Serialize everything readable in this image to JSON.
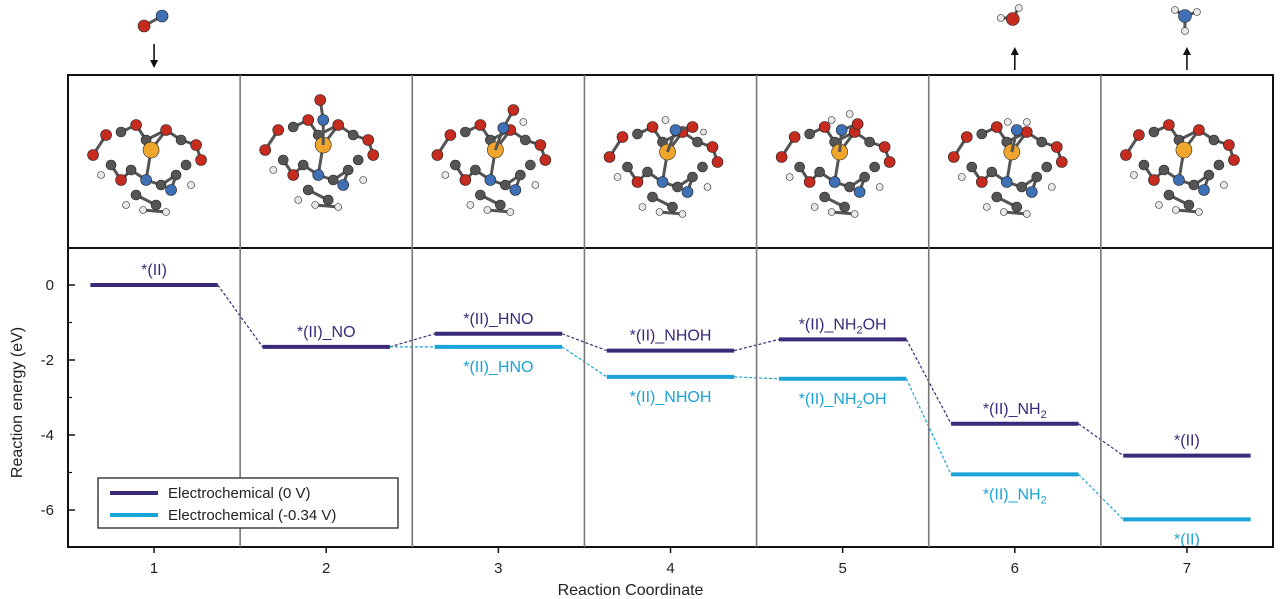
{
  "chart_data": {
    "type": "line",
    "xlabel": "Reaction Coordinate",
    "ylabel": "Reaction energy (eV)",
    "x": [
      1,
      2,
      3,
      4,
      5,
      6,
      7
    ],
    "x_tick_labels": [
      "1",
      "2",
      "3",
      "4",
      "5",
      "6",
      "7"
    ],
    "y_ticks": [
      0,
      -2,
      -4,
      -6
    ],
    "y_tick_labels": [
      "0",
      "-2",
      "-4",
      "-6"
    ],
    "ylim": [
      -7.0,
      0.9
    ],
    "legend_position": "bottom-left",
    "colors": {
      "series_0V": "#3b2a7a",
      "series_m034V": "#1aa3d6"
    },
    "series": [
      {
        "name": "Electrochemical (0 V)",
        "values": [
          0.0,
          -1.65,
          -1.3,
          -1.75,
          -1.45,
          -3.7,
          -4.55
        ],
        "labels": [
          "*(II)",
          "*(II)_NO",
          "*(II)_HNO",
          "*(II)_NHOH",
          "*(II)_NH2OH",
          "*(II)_NH2",
          "*(II)"
        ]
      },
      {
        "name": "Electrochemical (-0.34 V)",
        "values": [
          0.0,
          -1.65,
          -1.65,
          -2.45,
          -2.5,
          -5.05,
          -6.25
        ],
        "labels": [
          "",
          "",
          "*(II)_HNO",
          "*(II)_NHOH",
          "*(II)_NH2OH",
          "*(II)_NH2",
          "*(II)"
        ]
      }
    ]
  },
  "molecule_icons": {
    "top_arrows": [
      {
        "step": 1,
        "molecule": "no-molecule-icon",
        "direction": "down"
      },
      {
        "step": 6,
        "molecule": "water-molecule-icon",
        "direction": "up"
      },
      {
        "step": 7,
        "molecule": "ammonia-molecule-icon",
        "direction": "up"
      }
    ],
    "structures": [
      "catalyst-structure-icon",
      "catalyst-no-structure-icon",
      "catalyst-hno-structure-icon",
      "catalyst-nhoh-structure-icon",
      "catalyst-nh2oh-structure-icon",
      "catalyst-nh2-structure-icon",
      "catalyst-structure-icon"
    ]
  }
}
